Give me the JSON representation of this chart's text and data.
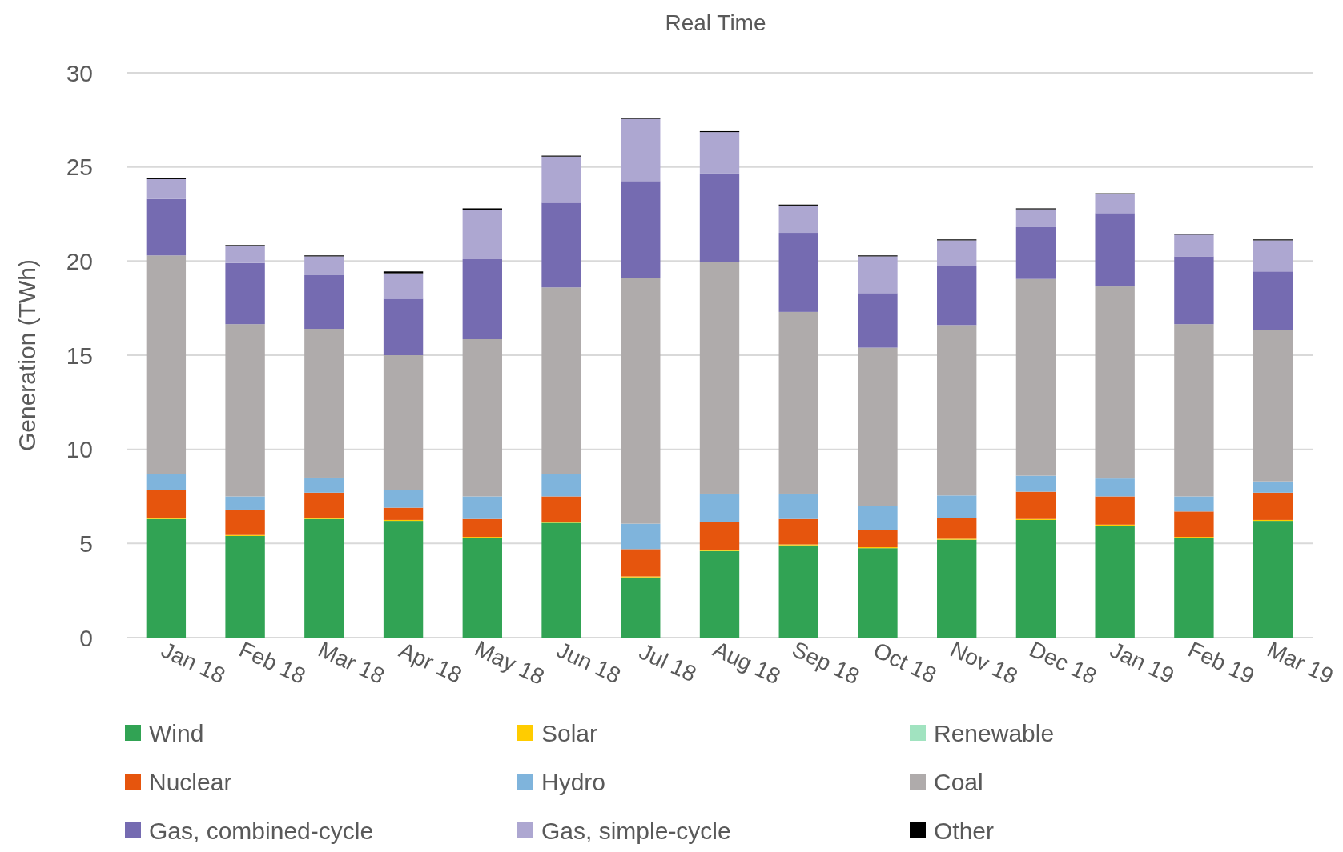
{
  "chart_data": {
    "type": "bar",
    "title": "Real Time",
    "ylabel": "Generation (TWh)",
    "stacked": true,
    "grid": "y",
    "legend": "bottom",
    "categories": [
      "Jan 18",
      "Feb 18",
      "Mar 18",
      "Apr 18",
      "May 18",
      "Jun 18",
      "Jul 18",
      "Aug 18",
      "Sep 18",
      "Oct 18",
      "Nov 18",
      "Dec 18",
      "Jan 19",
      "Feb 19",
      "Mar 19"
    ],
    "ylim": [
      0,
      30
    ],
    "yticks": [
      0,
      5,
      10,
      15,
      20,
      25,
      30
    ],
    "series": [
      {
        "name": "Wind",
        "color": "#31a354",
        "values": [
          6.3,
          5.4,
          6.3,
          6.2,
          5.3,
          6.1,
          3.2,
          4.6,
          4.9,
          4.75,
          5.2,
          6.25,
          5.95,
          5.3,
          6.2
        ]
      },
      {
        "name": "Solar",
        "color": "#ffcc00",
        "values": [
          0.05,
          0.05,
          0.05,
          0.05,
          0.05,
          0.05,
          0.05,
          0.05,
          0.05,
          0.05,
          0.05,
          0.05,
          0.05,
          0.05,
          0.05
        ]
      },
      {
        "name": "Renewable",
        "color": "#a1e3c0",
        "values": [
          0,
          0,
          0,
          0,
          0,
          0,
          0,
          0,
          0,
          0,
          0,
          0,
          0,
          0,
          0
        ]
      },
      {
        "name": "Nuclear",
        "color": "#e6550d",
        "values": [
          1.5,
          1.35,
          1.35,
          0.65,
          0.95,
          1.35,
          1.45,
          1.5,
          1.35,
          0.9,
          1.1,
          1.45,
          1.5,
          1.35,
          1.45
        ]
      },
      {
        "name": "Hydro",
        "color": "#7fb4dc",
        "values": [
          0.85,
          0.7,
          0.8,
          0.95,
          1.2,
          1.2,
          1.35,
          1.5,
          1.35,
          1.3,
          1.2,
          0.85,
          0.95,
          0.8,
          0.6
        ]
      },
      {
        "name": "Coal",
        "color": "#afabab",
        "values": [
          11.6,
          9.15,
          7.9,
          7.15,
          8.35,
          9.9,
          13.05,
          12.3,
          9.65,
          8.4,
          9.05,
          10.45,
          10.2,
          9.15,
          8.05
        ]
      },
      {
        "name": "Gas, combined-cycle",
        "color": "#756bb1",
        "values": [
          3.0,
          3.25,
          2.85,
          3.0,
          4.25,
          4.5,
          5.15,
          4.7,
          4.2,
          2.9,
          3.15,
          2.75,
          3.9,
          3.6,
          3.1
        ]
      },
      {
        "name": "Gas, simple-cycle",
        "color": "#ada7d1",
        "values": [
          1.05,
          0.9,
          1.0,
          1.35,
          2.6,
          2.45,
          3.3,
          2.2,
          1.45,
          1.95,
          1.35,
          0.95,
          1.0,
          1.15,
          1.65
        ]
      },
      {
        "name": "Other",
        "color": "#000000",
        "values": [
          0.05,
          0.05,
          0.05,
          0.1,
          0.1,
          0.05,
          0.05,
          0.05,
          0.05,
          0.05,
          0.05,
          0.05,
          0.05,
          0.05,
          0.05
        ]
      }
    ]
  }
}
